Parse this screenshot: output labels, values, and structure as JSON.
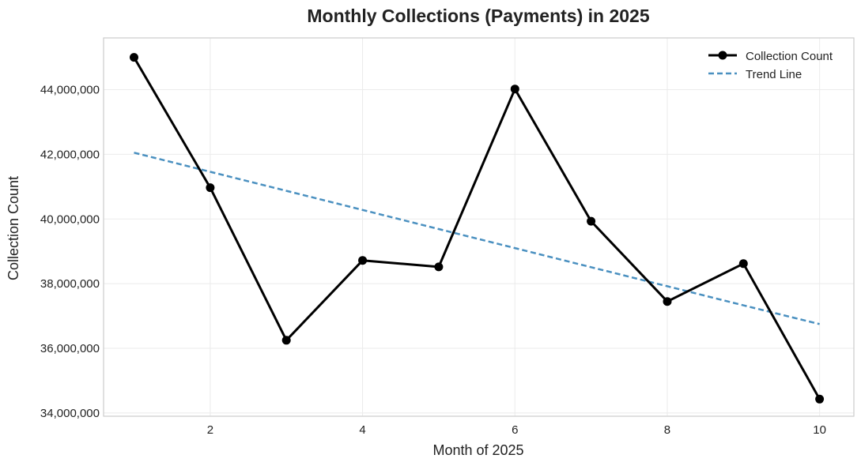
{
  "chart_data": {
    "type": "line",
    "title": "Monthly Collections (Payments) in 2025",
    "xlabel": "Month of 2025",
    "ylabel": "Collection Count",
    "x": [
      1,
      2,
      3,
      4,
      5,
      6,
      7,
      8,
      9,
      10
    ],
    "xlim": [
      0.6,
      10.45
    ],
    "ylim": [
      33900000,
      45600000
    ],
    "xticks": [
      2,
      4,
      6,
      8,
      10
    ],
    "yticks": [
      34000000,
      36000000,
      38000000,
      40000000,
      42000000,
      44000000
    ],
    "xtick_labels": [
      "2",
      "4",
      "6",
      "8",
      "10"
    ],
    "ytick_labels": [
      "34,000,000",
      "36,000,000",
      "38,000,000",
      "40,000,000",
      "42,000,000",
      "44,000,000"
    ],
    "grid": true,
    "legend_position": "top-right",
    "series": [
      {
        "name": "Collection Count",
        "style": "solid-markers",
        "color": "#000000",
        "values": [
          45000000,
          40970000,
          36250000,
          38720000,
          38520000,
          44020000,
          39930000,
          37450000,
          38620000,
          34430000
        ]
      },
      {
        "name": "Trend Line",
        "style": "dashed",
        "color": "#4a90c0",
        "values": [
          42050000,
          41460000,
          40870000,
          40280000,
          39690000,
          39100000,
          38510000,
          37920000,
          37330000,
          36750000
        ]
      }
    ]
  }
}
